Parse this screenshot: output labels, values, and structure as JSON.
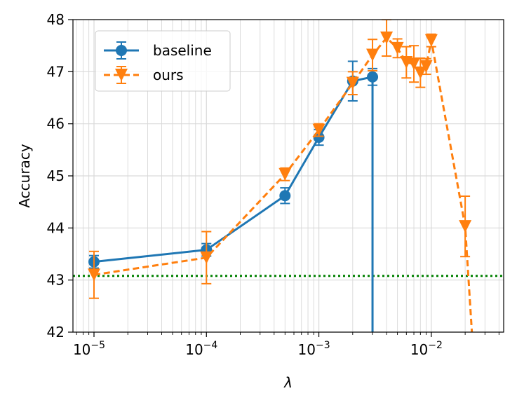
{
  "chart_data": {
    "type": "line",
    "xlabel": "λ",
    "ylabel": "Accuracy",
    "xscale": "log",
    "xlim": [
      6.5e-06,
      0.044
    ],
    "ylim": [
      42,
      48
    ],
    "grid": true,
    "legend_position": "upper-left",
    "x_ticks": [
      {
        "value": 1e-05,
        "base": "10",
        "exp": "−5"
      },
      {
        "value": 0.0001,
        "base": "10",
        "exp": "−4"
      },
      {
        "value": 0.001,
        "base": "10",
        "exp": "−3"
      },
      {
        "value": 0.01,
        "base": "10",
        "exp": "−2"
      }
    ],
    "y_ticks": [
      "42",
      "43",
      "44",
      "45",
      "46",
      "47",
      "48"
    ],
    "reference_line": {
      "y": 43.08,
      "color": "#008000",
      "style": "dotted"
    },
    "series": [
      {
        "name": "baseline",
        "color": "#1f77b4",
        "marker": "circle",
        "linestyle": "solid",
        "x": [
          1e-05,
          0.0001,
          0.0005,
          0.001,
          0.002,
          0.003
        ],
        "y": [
          43.35,
          43.58,
          44.62,
          45.74,
          46.82,
          46.9
        ],
        "err": [
          0.12,
          0.12,
          0.15,
          0.15,
          0.38,
          0.16
        ],
        "tail": {
          "x": 0.003,
          "y": 42
        }
      },
      {
        "name": "ours",
        "color": "#ff7f0e",
        "marker": "triangle-down",
        "linestyle": "dashed",
        "x": [
          1e-05,
          0.0001,
          0.0005,
          0.001,
          0.002,
          0.003,
          0.004,
          0.005,
          0.006,
          0.007,
          0.008,
          0.009,
          0.01,
          0.02
        ],
        "y": [
          43.1,
          43.43,
          45.03,
          45.88,
          46.78,
          47.32,
          47.65,
          47.45,
          47.18,
          47.15,
          46.98,
          47.1,
          47.6,
          44.03
        ],
        "err": [
          0.45,
          0.5,
          0.12,
          0.12,
          0.22,
          0.3,
          0.35,
          0.18,
          0.3,
          0.35,
          0.28,
          0.15,
          0.12,
          0.58
        ],
        "tail": {
          "x": 0.023,
          "y": 42
        }
      }
    ]
  }
}
